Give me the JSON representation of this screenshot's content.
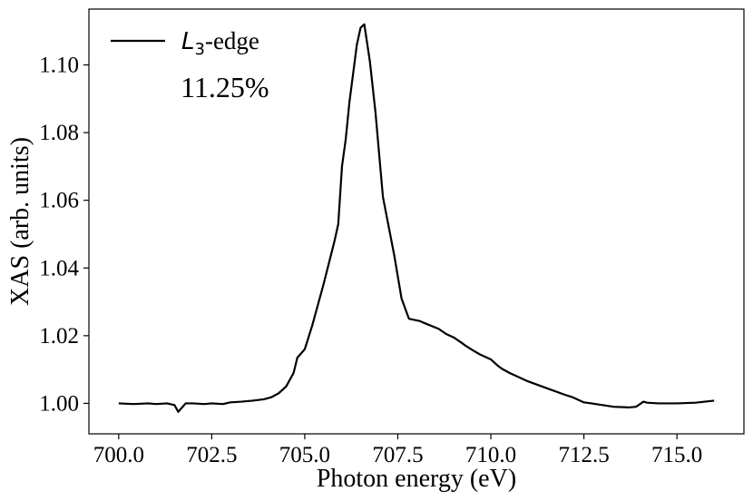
{
  "chart_data": {
    "type": "line",
    "xlabel": "Photon energy (eV)",
    "ylabel": "XAS (arb. units)",
    "xlim": [
      699.2,
      716.8
    ],
    "ylim": [
      0.991,
      1.1165
    ],
    "x_ticks": [
      700.0,
      702.5,
      705.0,
      707.5,
      710.0,
      712.5,
      715.0
    ],
    "x_tick_labels": [
      "700.0",
      "702.5",
      "705.0",
      "707.5",
      "710.0",
      "712.5",
      "715.0"
    ],
    "y_ticks": [
      1.0,
      1.02,
      1.04,
      1.06,
      1.08,
      1.1
    ],
    "y_tick_labels": [
      "1.00",
      "1.02",
      "1.04",
      "1.06",
      "1.08",
      "1.10"
    ],
    "grid": false,
    "legend": {
      "placement": "top-left",
      "main": "L",
      "subscript": "3",
      "suffix": "-edge"
    },
    "annotation": "11.25%",
    "series": [
      {
        "name": "L3-edge",
        "color": "#000000",
        "x": [
          700.0,
          700.4,
          700.8,
          701.0,
          701.3,
          701.5,
          701.6,
          701.8,
          702.0,
          702.3,
          702.5,
          702.8,
          703.0,
          703.3,
          703.6,
          703.9,
          704.1,
          704.3,
          704.5,
          704.7,
          704.8,
          705.0,
          705.2,
          705.5,
          705.8,
          705.9,
          706.0,
          706.1,
          706.2,
          706.4,
          706.5,
          706.6,
          706.75,
          706.9,
          707.1,
          707.4,
          707.6,
          707.8,
          708.1,
          708.2,
          708.6,
          708.8,
          709.0,
          709.2,
          709.3,
          709.5,
          709.7,
          710.0,
          710.2,
          710.3,
          710.5,
          711.0,
          711.5,
          712.0,
          712.2,
          712.5,
          712.7,
          713.0,
          713.3,
          713.7,
          713.9,
          714.1,
          714.2,
          714.5,
          715.0,
          715.5,
          716.0
        ],
        "y": [
          1.0,
          0.9998,
          1.0,
          0.9998,
          1.0,
          0.9995,
          0.9975,
          1.0,
          1.0,
          0.9998,
          1.0,
          0.9998,
          1.0003,
          1.0005,
          1.0008,
          1.0012,
          1.0018,
          1.003,
          1.005,
          1.009,
          1.0135,
          1.016,
          1.023,
          1.035,
          1.048,
          1.053,
          1.07,
          1.078,
          1.089,
          1.106,
          1.111,
          1.112,
          1.101,
          1.086,
          1.061,
          1.044,
          1.031,
          1.025,
          1.0243,
          1.0238,
          1.022,
          1.0205,
          1.0195,
          1.018,
          1.0172,
          1.0158,
          1.0145,
          1.013,
          1.011,
          1.0102,
          1.009,
          1.0065,
          1.0045,
          1.0025,
          1.0018,
          1.0003,
          1.0,
          0.9995,
          0.999,
          0.9988,
          0.999,
          1.0005,
          1.0002,
          1.0,
          1.0,
          1.0002,
          1.0008
        ]
      }
    ]
  }
}
